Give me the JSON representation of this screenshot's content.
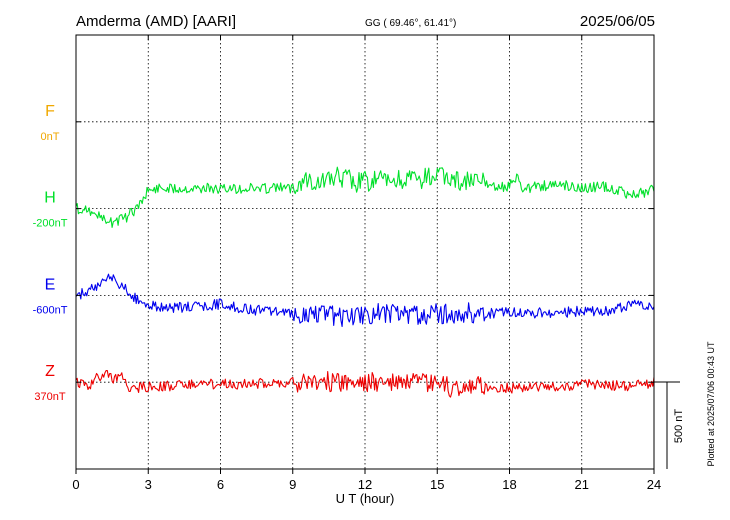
{
  "header": {
    "station": "Amderma (AMD)  [AARI]",
    "coords": "GG ( 69.46°,  61.41°)",
    "date": "2025/06/05"
  },
  "footer": {
    "plotted": "Plotted at 2025/07/06 00:43 UT",
    "scale_label": "500 nT"
  },
  "chart_data": {
    "type": "line",
    "title": "Amderma (AMD)  [AARI]",
    "xlabel": "U T (hour)",
    "ylabel": "",
    "xlim": [
      0,
      24
    ],
    "xticks": [
      0,
      3,
      6,
      9,
      12,
      15,
      18,
      21,
      24
    ],
    "xtick_labels": [
      "0",
      "3",
      "6",
      "9",
      "12",
      "15",
      "18",
      "21",
      "24"
    ],
    "grid": true,
    "scale_bar_nT": 500,
    "series": [
      {
        "name": "F",
        "baseline": "0nT",
        "color": "#f0a800",
        "offset_divisions": 1,
        "x": [],
        "y": []
      },
      {
        "name": "H",
        "baseline": "-200nT",
        "color": "#00e02a",
        "offset_divisions": 2,
        "x": [
          0,
          0.5,
          1,
          1.3,
          1.6,
          2,
          2.5,
          3,
          3.5,
          4,
          5,
          6,
          7,
          8,
          9,
          9.5,
          10,
          10.5,
          11,
          11.3,
          11.5,
          12,
          13,
          14,
          15,
          15.5,
          16,
          17,
          17.5,
          18,
          18.3,
          18.6,
          19,
          20,
          21,
          22,
          23,
          23.5,
          24
        ],
        "y": [
          -200,
          -205,
          -250,
          -285,
          -275,
          -260,
          -200,
          -95,
          -80,
          -82,
          -80,
          -88,
          -85,
          -82,
          -80,
          -20,
          -45,
          -30,
          -15,
          -25,
          -50,
          -40,
          -40,
          -35,
          -15,
          -25,
          -45,
          -55,
          -75,
          -70,
          -25,
          -90,
          -75,
          -60,
          -80,
          -75,
          -120,
          -110,
          -85
        ]
      },
      {
        "name": "E",
        "baseline": "-600nT",
        "color": "#0000ee",
        "offset_divisions": 3,
        "x": [
          0,
          0.5,
          1,
          1.3,
          1.6,
          2,
          2.5,
          3,
          4,
          5,
          6,
          7,
          8,
          9,
          9.5,
          10,
          10.5,
          11,
          11.5,
          12,
          13,
          14,
          15,
          16,
          17,
          18,
          19,
          20,
          21,
          22,
          23,
          23.3,
          24
        ],
        "y": [
          -600,
          -580,
          -530,
          -490,
          -510,
          -560,
          -620,
          -660,
          -670,
          -665,
          -650,
          -680,
          -690,
          -700,
          -715,
          -705,
          -715,
          -725,
          -710,
          -705,
          -700,
          -710,
          -705,
          -700,
          -705,
          -695,
          -700,
          -700,
          -690,
          -690,
          -660,
          -640,
          -670
        ]
      },
      {
        "name": "Z",
        "baseline": "370nT",
        "color": "#ee0000",
        "offset_divisions": 4,
        "x": [
          0,
          0.5,
          0.8,
          1.2,
          1.5,
          2,
          2.2,
          2.6,
          3,
          4,
          5,
          6,
          7,
          8,
          9,
          10,
          11,
          12,
          13,
          14,
          15,
          15.8,
          16.3,
          17,
          18,
          19,
          20,
          21,
          22,
          23,
          24
        ],
        "y": [
          370,
          345,
          395,
          420,
          385,
          400,
          330,
          340,
          345,
          350,
          355,
          360,
          360,
          365,
          368,
          375,
          370,
          372,
          368,
          365,
          360,
          330,
          350,
          345,
          335,
          350,
          340,
          360,
          355,
          345,
          370
        ]
      }
    ]
  }
}
